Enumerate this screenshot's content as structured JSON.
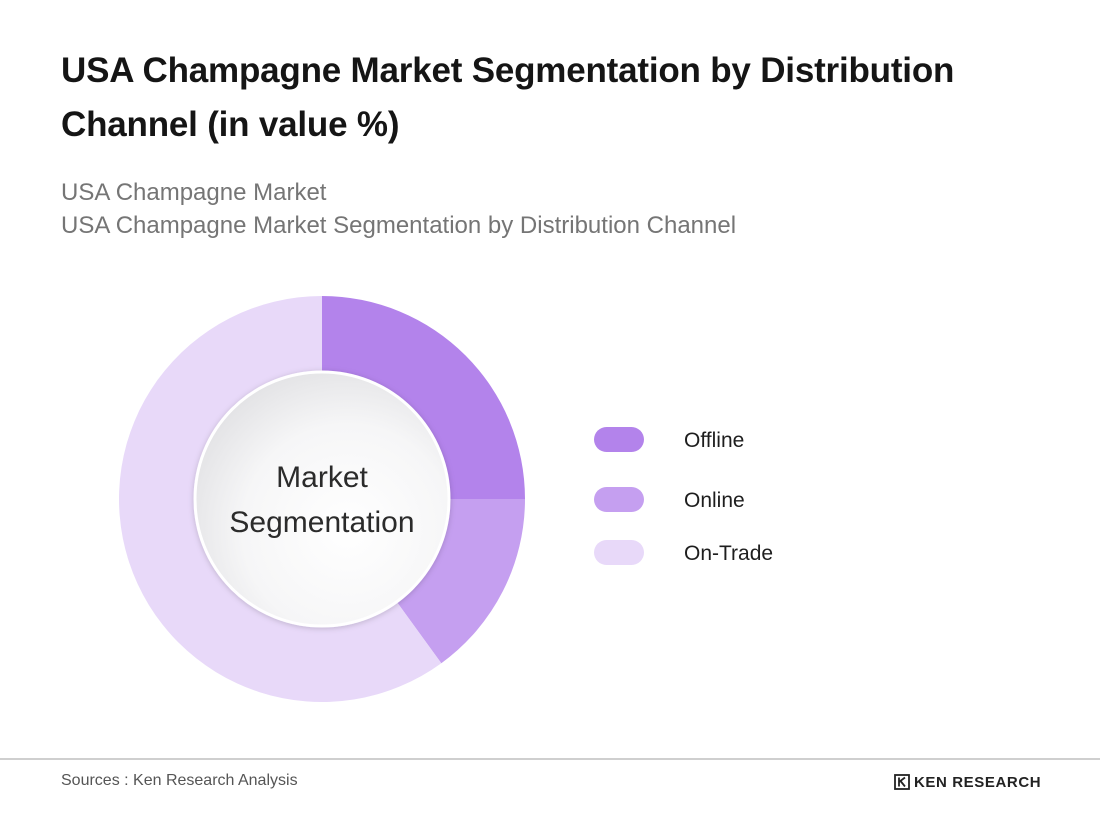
{
  "header": {
    "title": "USA Champagne Market Segmentation by Distribution Channel (in value %)",
    "subtitle_line1": "USA Champagne Market",
    "subtitle_line2": "USA Champagne Market Segmentation by Distribution Channel"
  },
  "chart_data": {
    "type": "pie",
    "variant": "donut",
    "title": "USA Champagne Market Segmentation by Distribution Channel (in value %)",
    "center_label": [
      "Market",
      "Segmentation"
    ],
    "categories": [
      "Offline",
      "Online",
      "On-Trade"
    ],
    "values": [
      25,
      15,
      60
    ],
    "unit": "%",
    "colors": [
      "#b383eb",
      "#c59ff0",
      "#e8d9f9"
    ],
    "legend_position": "right",
    "start_angle": "12 o'clock, clockwise"
  },
  "footer": {
    "source": "Sources : Ken Research Analysis",
    "brand": "KEN RESEARCH"
  }
}
